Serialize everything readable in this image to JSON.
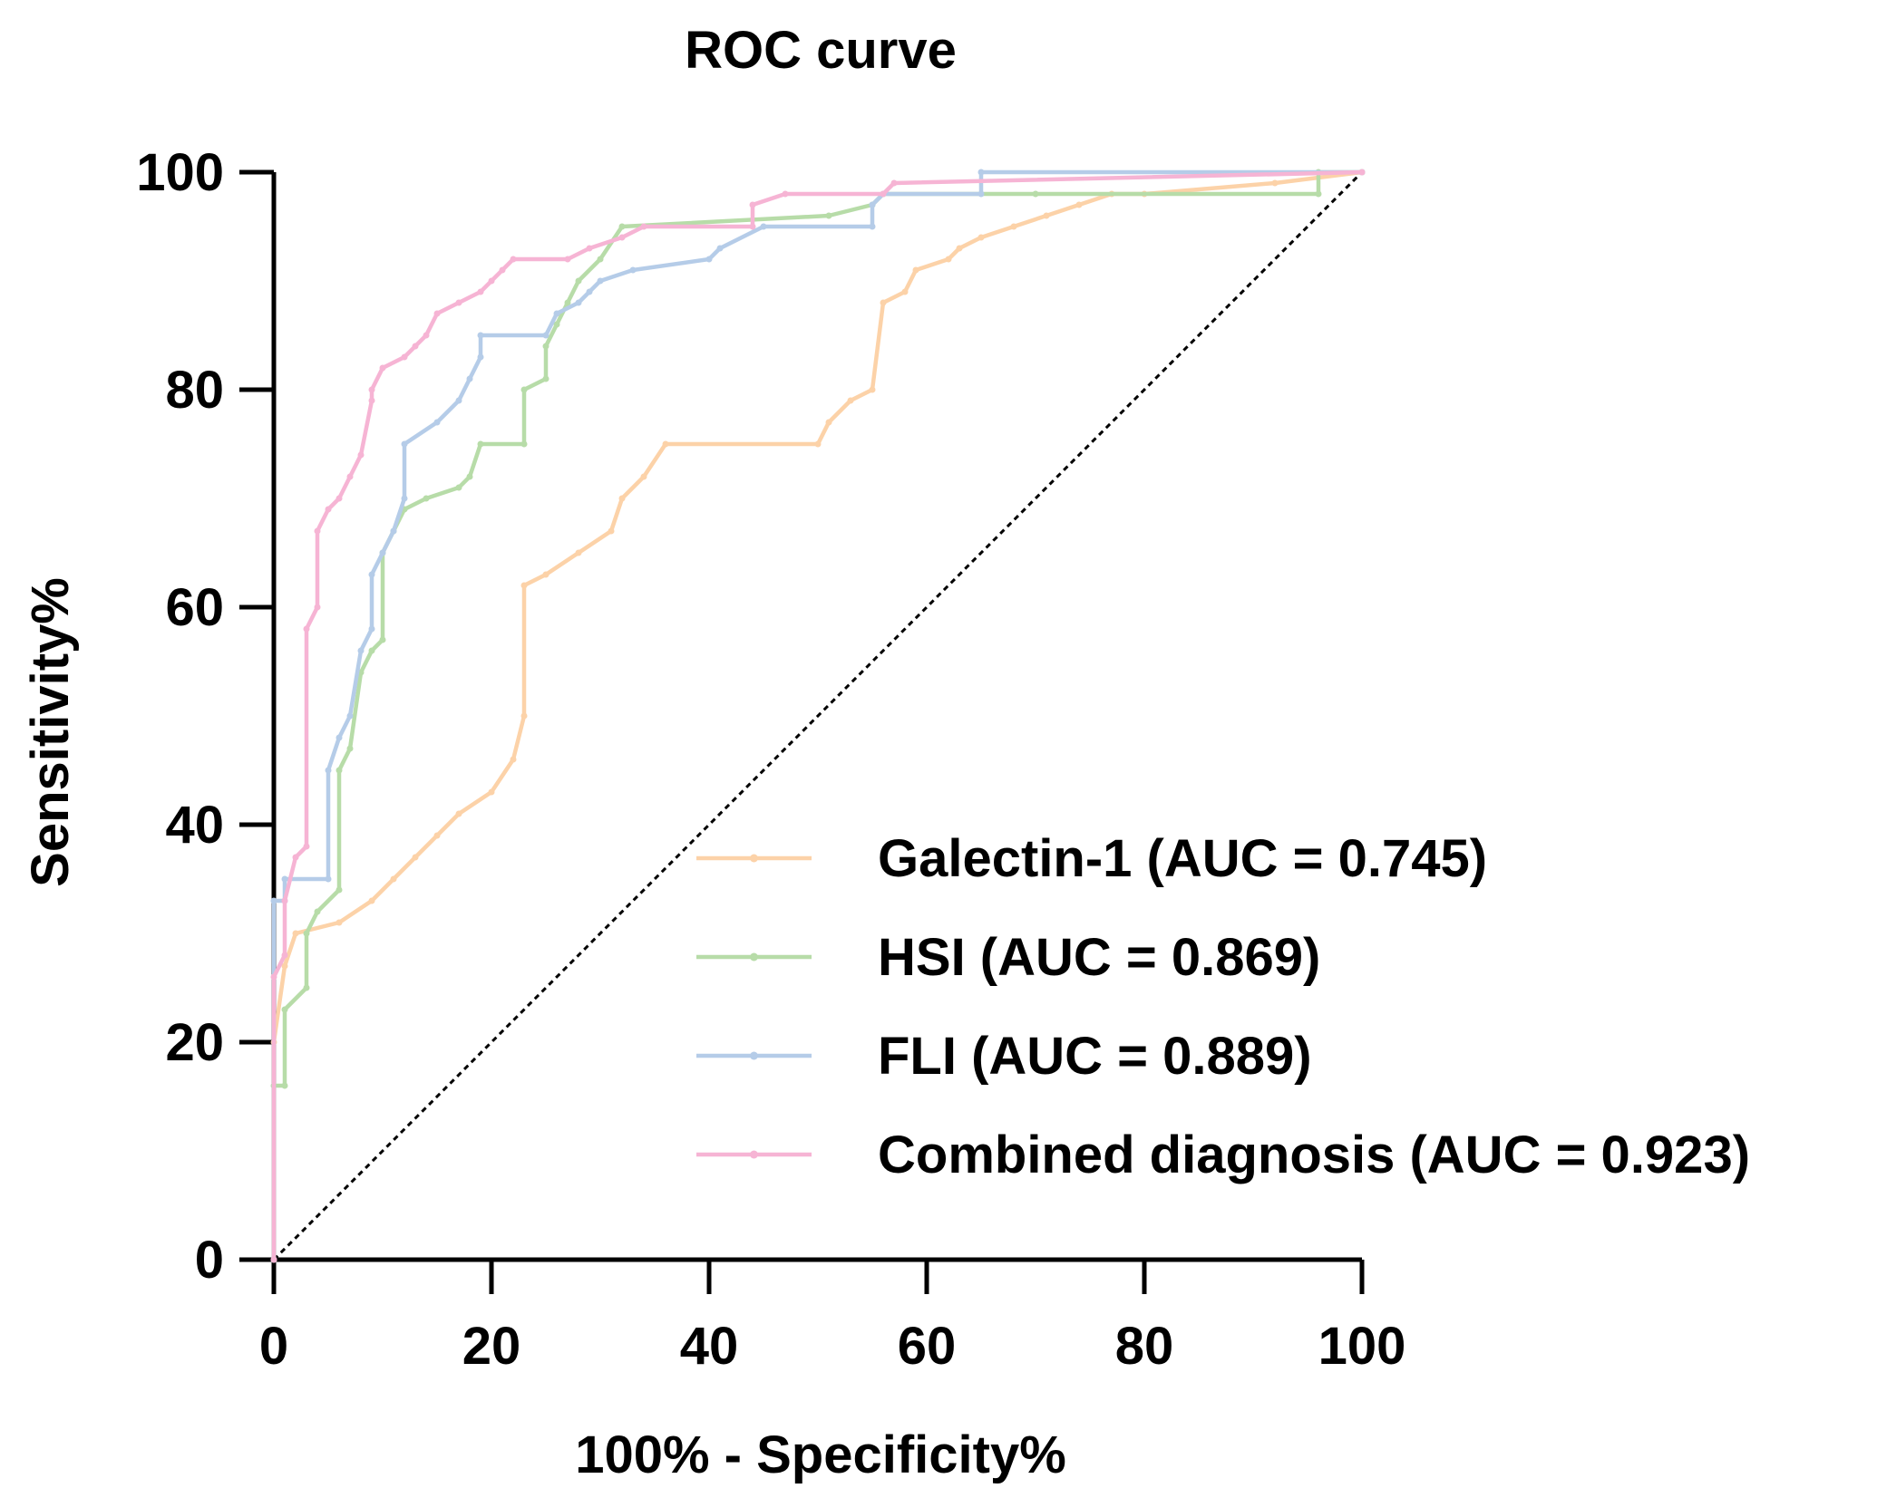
{
  "chart_data": {
    "type": "line",
    "title": "ROC curve",
    "xlabel": "100% - Specificity%",
    "ylabel": "Sensitivity%",
    "xlim": [
      0,
      100
    ],
    "ylim": [
      0,
      100
    ],
    "xticks": [
      0,
      20,
      40,
      60,
      80,
      100
    ],
    "yticks": [
      0,
      20,
      40,
      60,
      80,
      100
    ],
    "legend_position": "bottom-right",
    "reference_line": {
      "name": "chance",
      "points": [
        [
          0,
          0
        ],
        [
          100,
          100
        ]
      ]
    },
    "series": [
      {
        "name": "Galectin-1",
        "legend": "Galectin-1 (AUC = 0.745)",
        "color": "#fcd2a8",
        "points": [
          [
            0,
            0
          ],
          [
            0,
            20
          ],
          [
            1,
            27
          ],
          [
            2,
            30
          ],
          [
            6,
            31
          ],
          [
            9,
            33
          ],
          [
            11,
            35
          ],
          [
            13,
            37
          ],
          [
            15,
            39
          ],
          [
            17,
            41
          ],
          [
            20,
            43
          ],
          [
            22,
            46
          ],
          [
            23,
            50
          ],
          [
            23,
            62
          ],
          [
            25,
            63
          ],
          [
            28,
            65
          ],
          [
            31,
            67
          ],
          [
            32,
            70
          ],
          [
            34,
            72
          ],
          [
            36,
            75
          ],
          [
            50,
            75
          ],
          [
            51,
            77
          ],
          [
            53,
            79
          ],
          [
            55,
            80
          ],
          [
            56,
            88
          ],
          [
            58,
            89
          ],
          [
            59,
            91
          ],
          [
            62,
            92
          ],
          [
            63,
            93
          ],
          [
            65,
            94
          ],
          [
            68,
            95
          ],
          [
            71,
            96
          ],
          [
            74,
            97
          ],
          [
            77,
            98
          ],
          [
            80,
            98
          ],
          [
            92,
            99
          ],
          [
            100,
            100
          ]
        ]
      },
      {
        "name": "HSI",
        "legend": "HSI (AUC = 0.869)",
        "color": "#b7dca8",
        "points": [
          [
            0,
            0
          ],
          [
            0,
            16
          ],
          [
            1,
            16
          ],
          [
            1,
            23
          ],
          [
            3,
            25
          ],
          [
            3,
            30
          ],
          [
            4,
            32
          ],
          [
            6,
            34
          ],
          [
            6,
            45
          ],
          [
            7,
            47
          ],
          [
            8,
            54
          ],
          [
            9,
            56
          ],
          [
            10,
            57
          ],
          [
            10,
            65
          ],
          [
            11,
            67
          ],
          [
            12,
            69
          ],
          [
            14,
            70
          ],
          [
            17,
            71
          ],
          [
            18,
            72
          ],
          [
            19,
            75
          ],
          [
            23,
            75
          ],
          [
            23,
            80
          ],
          [
            25,
            81
          ],
          [
            25,
            84
          ],
          [
            26,
            86
          ],
          [
            27,
            88
          ],
          [
            28,
            90
          ],
          [
            30,
            92
          ],
          [
            32,
            95
          ],
          [
            51,
            96
          ],
          [
            55,
            97
          ],
          [
            56,
            98
          ],
          [
            70,
            98
          ],
          [
            96,
            98
          ],
          [
            96,
            100
          ],
          [
            100,
            100
          ]
        ]
      },
      {
        "name": "FLI",
        "legend": "FLI (AUC = 0.889)",
        "color": "#b5cce8",
        "points": [
          [
            0,
            0
          ],
          [
            0,
            33
          ],
          [
            1,
            33
          ],
          [
            1,
            35
          ],
          [
            5,
            35
          ],
          [
            5,
            45
          ],
          [
            6,
            48
          ],
          [
            7,
            50
          ],
          [
            8,
            56
          ],
          [
            9,
            58
          ],
          [
            9,
            63
          ],
          [
            10,
            65
          ],
          [
            11,
            67
          ],
          [
            12,
            70
          ],
          [
            12,
            75
          ],
          [
            15,
            77
          ],
          [
            17,
            79
          ],
          [
            18,
            81
          ],
          [
            19,
            83
          ],
          [
            19,
            85
          ],
          [
            25,
            85
          ],
          [
            26,
            87
          ],
          [
            28,
            88
          ],
          [
            29,
            89
          ],
          [
            30,
            90
          ],
          [
            33,
            91
          ],
          [
            40,
            92
          ],
          [
            41,
            93
          ],
          [
            45,
            95
          ],
          [
            55,
            95
          ],
          [
            55,
            97
          ],
          [
            56,
            98
          ],
          [
            65,
            98
          ],
          [
            65,
            100
          ],
          [
            100,
            100
          ]
        ]
      },
      {
        "name": "Combined diagnosis",
        "legend": "Combined diagnosis (AUC = 0.923)",
        "color": "#f6b4d4",
        "points": [
          [
            0,
            0
          ],
          [
            0,
            26
          ],
          [
            1,
            28
          ],
          [
            1,
            33
          ],
          [
            2,
            37
          ],
          [
            3,
            38
          ],
          [
            3,
            58
          ],
          [
            4,
            60
          ],
          [
            4,
            67
          ],
          [
            5,
            69
          ],
          [
            6,
            70
          ],
          [
            7,
            72
          ],
          [
            8,
            74
          ],
          [
            9,
            79
          ],
          [
            9,
            80
          ],
          [
            10,
            82
          ],
          [
            12,
            83
          ],
          [
            13,
            84
          ],
          [
            14,
            85
          ],
          [
            15,
            87
          ],
          [
            17,
            88
          ],
          [
            19,
            89
          ],
          [
            20,
            90
          ],
          [
            21,
            91
          ],
          [
            22,
            92
          ],
          [
            27,
            92
          ],
          [
            29,
            93
          ],
          [
            32,
            94
          ],
          [
            34,
            95
          ],
          [
            44,
            95
          ],
          [
            44,
            97
          ],
          [
            47,
            98
          ],
          [
            56,
            98
          ],
          [
            57,
            99
          ],
          [
            100,
            100
          ]
        ]
      }
    ]
  }
}
